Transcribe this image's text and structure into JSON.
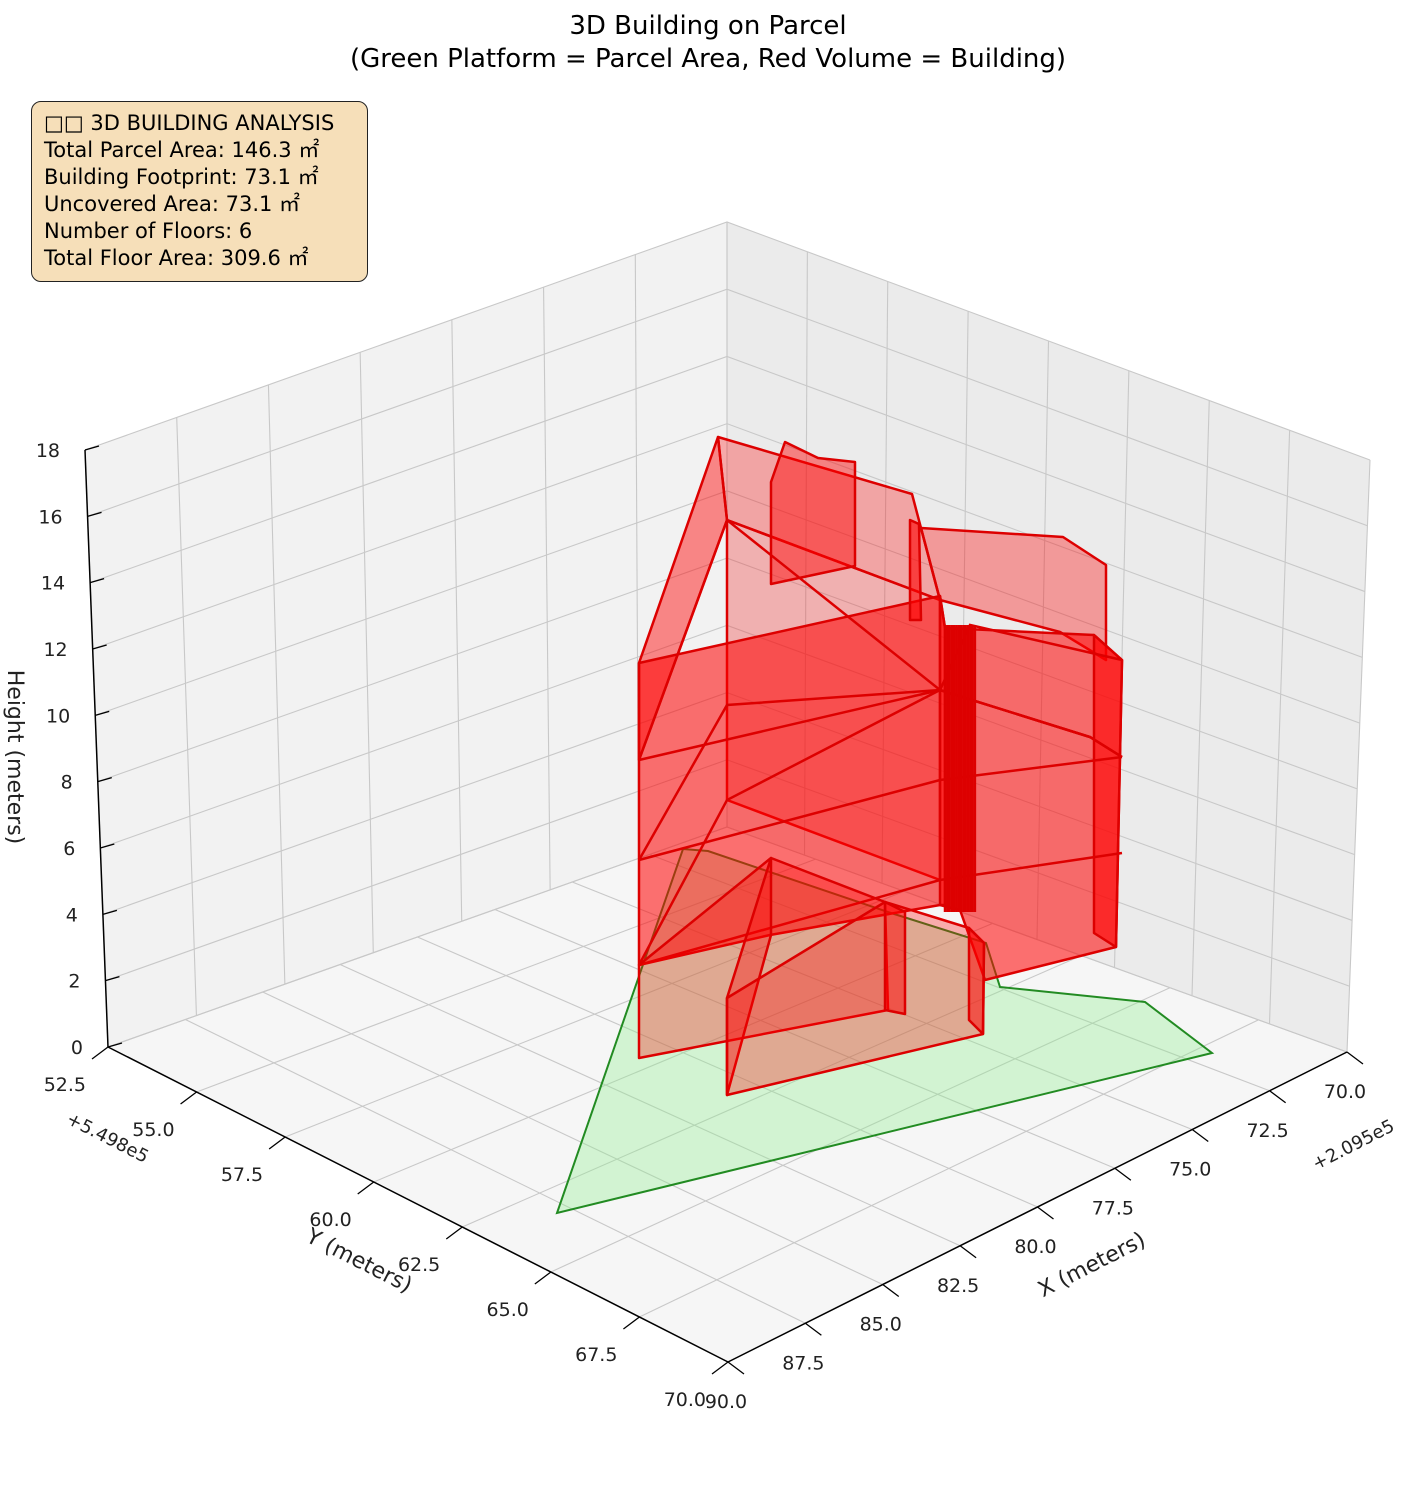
{
  "title": {
    "line1": "3D Building on Parcel",
    "line2": "(Green Platform = Parcel Area, Red Volume = Building)"
  },
  "info_box": {
    "header": "□□ 3D BUILDING ANALYSIS",
    "lines": [
      "Total Parcel Area: 146.3 ㎡",
      "Building Footprint: 73.1 ㎡",
      "Uncovered Area: 73.1 ㎡",
      "Number of Floors: 6",
      "Total Floor Area: 309.6 ㎡"
    ]
  },
  "colors": {
    "parcel_fill": "#90ee90",
    "parcel_edge": "#228b22",
    "building_fill": "#ff0000",
    "building_edge": "#dd0000",
    "legend_bg": "#f5deb3"
  },
  "chart_data": {
    "type": "3d-polygon",
    "axes": {
      "x": {
        "label": "X (meters)",
        "offset": "+2.095e5",
        "ticks": [
          "70.0",
          "72.5",
          "75.0",
          "77.5",
          "80.0",
          "82.5",
          "85.0",
          "87.5",
          "90.0"
        ],
        "range": [
          70.0,
          90.0
        ]
      },
      "y": {
        "label": "Y (meters)",
        "offset": "+5.498e5",
        "ticks": [
          "52.5",
          "55.0",
          "57.5",
          "60.0",
          "62.5",
          "65.0",
          "67.5",
          "70.0"
        ],
        "range": [
          52.5,
          70.0
        ]
      },
      "z": {
        "label": "Height (meters)",
        "ticks": [
          "0",
          "2",
          "4",
          "6",
          "8",
          "10",
          "12",
          "14",
          "16",
          "18"
        ],
        "range": [
          0,
          18
        ]
      }
    },
    "grid": true,
    "num_floors": 6,
    "floor_height_m": 3
  }
}
